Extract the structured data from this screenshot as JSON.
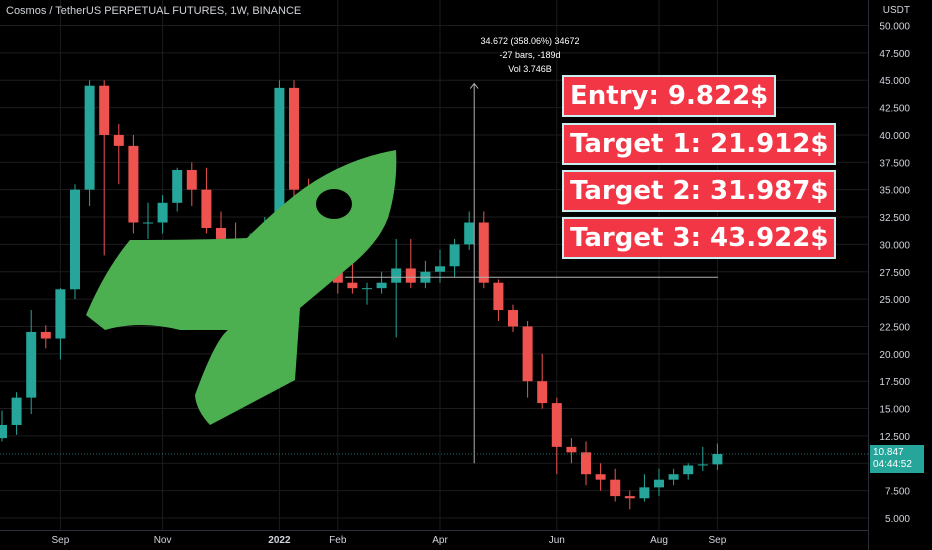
{
  "header": {
    "symbol_title": "Cosmos / TetherUS PERPETUAL FUTURES, 1W, BINANCE",
    "currency": "USDT"
  },
  "measure": {
    "line1": "34.672 (358.06%) 34672",
    "line2": "-27 bars, -189d",
    "line3": "Vol 3.746B",
    "from_bar": 32,
    "to_bar": 32,
    "crosshair_price": 27.0,
    "low_price": 10.0,
    "high_price": 44.7
  },
  "callouts": {
    "entry": "Entry: 9.822$",
    "target1": "Target 1: 21.912$",
    "target2": "Target 2: 31.987$",
    "target3": "Target 3: 43.922$"
  },
  "last_price": {
    "price": "10.847",
    "countdown": "04:44:52",
    "value": 10.847
  },
  "colors": {
    "background": "#000000",
    "up": "#26a69a",
    "down": "#ef5350",
    "grid": "#1c1c1c",
    "callout_bg": "#f23645",
    "callout_border": "#c9eef0",
    "rocket": "#4caf50"
  },
  "decoration": {
    "icon": "rocket-icon"
  },
  "chart_data": {
    "type": "candlestick",
    "title": "Cosmos / TetherUS PERPETUAL FUTURES, 1W, BINANCE",
    "ylim": [
      3.8,
      52.0
    ],
    "y_ticks": [
      "5.000",
      "7.500",
      "10.000",
      "12.500",
      "15.000",
      "17.500",
      "20.000",
      "22.500",
      "25.000",
      "27.500",
      "30.000",
      "32.500",
      "35.000",
      "37.500",
      "40.000",
      "42.500",
      "45.000",
      "47.500",
      "50.000"
    ],
    "x_ticks": [
      {
        "label": "Sep",
        "bar": 4
      },
      {
        "label": "Nov",
        "bar": 11
      },
      {
        "label": "2022",
        "bar": 19
      },
      {
        "label": "Feb",
        "bar": 23
      },
      {
        "label": "Apr",
        "bar": 30
      },
      {
        "label": "Jun",
        "bar": 38
      },
      {
        "label": "Aug",
        "bar": 45
      },
      {
        "label": "Sep",
        "bar": 49
      }
    ],
    "candles": [
      {
        "o": 12.3,
        "h": 14.8,
        "l": 12.0,
        "c": 13.5
      },
      {
        "o": 13.5,
        "h": 16.5,
        "l": 12.6,
        "c": 16.0
      },
      {
        "o": 16.0,
        "h": 24.0,
        "l": 14.5,
        "c": 22.0
      },
      {
        "o": 22.0,
        "h": 22.6,
        "l": 20.5,
        "c": 21.4
      },
      {
        "o": 21.4,
        "h": 26.0,
        "l": 19.5,
        "c": 25.9
      },
      {
        "o": 25.9,
        "h": 35.5,
        "l": 25.0,
        "c": 35.0
      },
      {
        "o": 35.0,
        "h": 45.0,
        "l": 33.5,
        "c": 44.5
      },
      {
        "o": 44.5,
        "h": 45.0,
        "l": 29.0,
        "c": 40.0
      },
      {
        "o": 40.0,
        "h": 41.0,
        "l": 35.5,
        "c": 39.0
      },
      {
        "o": 39.0,
        "h": 40.0,
        "l": 31.0,
        "c": 32.0
      },
      {
        "o": 32.0,
        "h": 33.8,
        "l": 30.5,
        "c": 32.0
      },
      {
        "o": 32.0,
        "h": 34.5,
        "l": 31.0,
        "c": 33.8
      },
      {
        "o": 33.8,
        "h": 37.0,
        "l": 33.0,
        "c": 36.8
      },
      {
        "o": 36.8,
        "h": 37.5,
        "l": 33.5,
        "c": 35.0
      },
      {
        "o": 35.0,
        "h": 37.0,
        "l": 31.0,
        "c": 31.5
      },
      {
        "o": 31.5,
        "h": 33.0,
        "l": 29.0,
        "c": 30.5
      },
      {
        "o": 30.5,
        "h": 32.0,
        "l": 27.5,
        "c": 28.5
      },
      {
        "o": 28.5,
        "h": 31.0,
        "l": 24.5,
        "c": 30.0
      },
      {
        "o": 30.0,
        "h": 32.5,
        "l": 28.5,
        "c": 30.5
      },
      {
        "o": 30.5,
        "h": 45.0,
        "l": 29.5,
        "c": 44.3
      },
      {
        "o": 44.3,
        "h": 45.0,
        "l": 32.0,
        "c": 35.0
      },
      {
        "o": 35.0,
        "h": 36.0,
        "l": 25.0,
        "c": 30.0
      },
      {
        "o": 30.0,
        "h": 31.0,
        "l": 27.0,
        "c": 28.0
      },
      {
        "o": 28.0,
        "h": 30.0,
        "l": 25.5,
        "c": 26.5
      },
      {
        "o": 26.5,
        "h": 30.0,
        "l": 25.5,
        "c": 26.0
      },
      {
        "o": 26.0,
        "h": 26.5,
        "l": 24.5,
        "c": 26.0
      },
      {
        "o": 26.0,
        "h": 27.5,
        "l": 25.5,
        "c": 26.5
      },
      {
        "o": 26.5,
        "h": 30.5,
        "l": 21.5,
        "c": 27.8
      },
      {
        "o": 27.8,
        "h": 30.5,
        "l": 26.0,
        "c": 26.5
      },
      {
        "o": 26.5,
        "h": 28.5,
        "l": 26.0,
        "c": 27.5
      },
      {
        "o": 27.5,
        "h": 29.5,
        "l": 26.5,
        "c": 28.0
      },
      {
        "o": 28.0,
        "h": 30.5,
        "l": 27.0,
        "c": 30.0
      },
      {
        "o": 30.0,
        "h": 33.0,
        "l": 29.5,
        "c": 32.0
      },
      {
        "o": 32.0,
        "h": 33.0,
        "l": 26.0,
        "c": 26.5
      },
      {
        "o": 26.5,
        "h": 26.8,
        "l": 23.0,
        "c": 24.0
      },
      {
        "o": 24.0,
        "h": 24.5,
        "l": 22.0,
        "c": 22.5
      },
      {
        "o": 22.5,
        "h": 23.0,
        "l": 16.0,
        "c": 17.5
      },
      {
        "o": 17.5,
        "h": 20.0,
        "l": 15.0,
        "c": 15.5
      },
      {
        "o": 15.5,
        "h": 16.0,
        "l": 9.0,
        "c": 11.5
      },
      {
        "o": 11.5,
        "h": 12.3,
        "l": 10.0,
        "c": 11.0
      },
      {
        "o": 11.0,
        "h": 12.0,
        "l": 8.0,
        "c": 9.0
      },
      {
        "o": 9.0,
        "h": 10.0,
        "l": 7.5,
        "c": 8.5
      },
      {
        "o": 8.5,
        "h": 9.5,
        "l": 6.5,
        "c": 7.0
      },
      {
        "o": 7.0,
        "h": 7.5,
        "l": 5.8,
        "c": 6.8
      },
      {
        "o": 6.8,
        "h": 9.0,
        "l": 6.5,
        "c": 7.8
      },
      {
        "o": 7.8,
        "h": 9.5,
        "l": 7.0,
        "c": 8.5
      },
      {
        "o": 8.5,
        "h": 9.5,
        "l": 8.0,
        "c": 9.0
      },
      {
        "o": 9.0,
        "h": 10.0,
        "l": 8.5,
        "c": 9.8
      },
      {
        "o": 9.8,
        "h": 11.5,
        "l": 9.3,
        "c": 9.9
      },
      {
        "o": 9.9,
        "h": 11.8,
        "l": 9.4,
        "c": 10.847
      }
    ]
  }
}
